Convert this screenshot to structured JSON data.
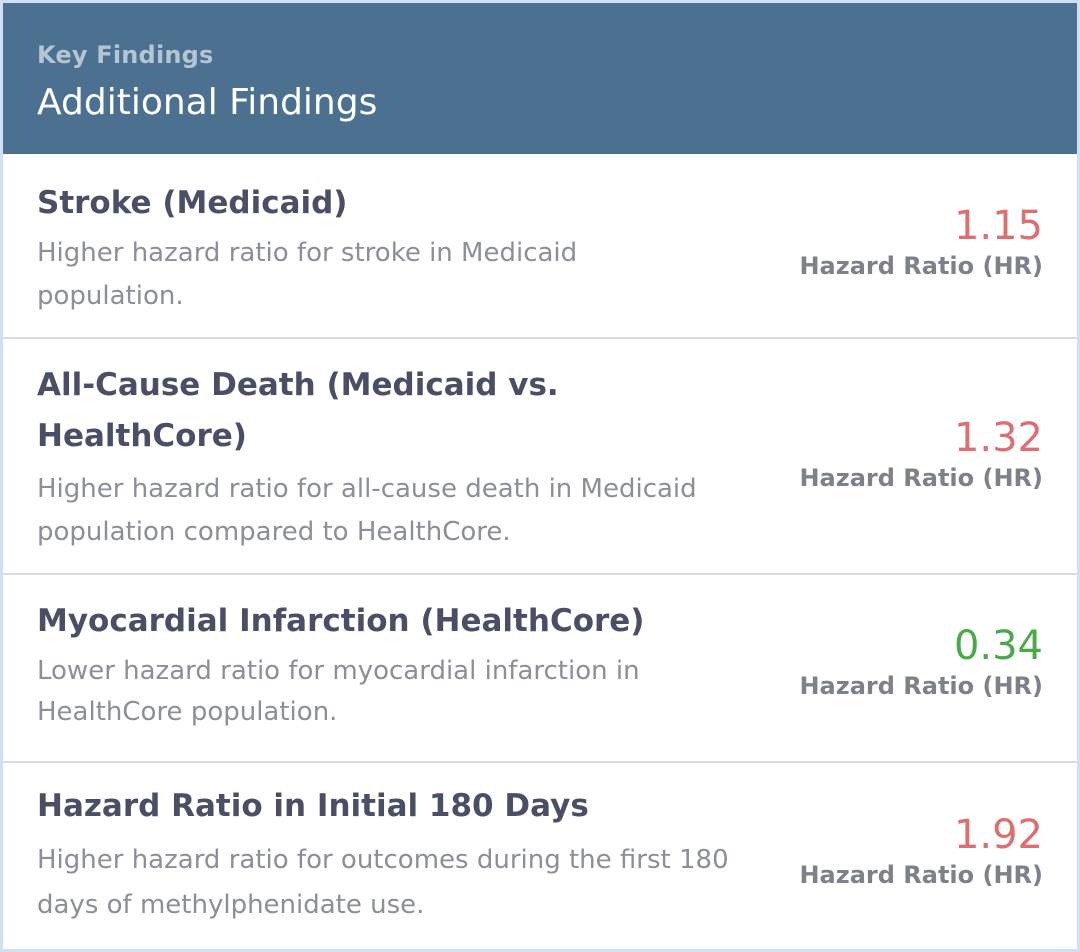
{
  "header": {
    "eyebrow": "Key Findings",
    "title": "Additional Findings"
  },
  "findings": [
    {
      "title": "Stroke (Medicaid)",
      "description": "Higher hazard ratio for stroke in Medicaid population.",
      "value": "1.15",
      "value_label": "Hazard Ratio (HR)",
      "direction": "increase"
    },
    {
      "title": "All-Cause Death (Medicaid vs. HealthCore)",
      "description": "Higher hazard ratio for all-cause death in Medicaid population compared to HealthCore.",
      "value": "1.32",
      "value_label": "Hazard Ratio (HR)",
      "direction": "increase"
    },
    {
      "title": "Myocardial Infarction (HealthCore)",
      "description": "Lower hazard ratio for myocardial infarction in HealthCore population.",
      "value": "0.34",
      "value_label": "Hazard Ratio (HR)",
      "direction": "decrease"
    },
    {
      "title": "Hazard Ratio in Initial 180 Days",
      "description": "Higher hazard ratio for outcomes during the first 180 days of methylphenidate use.",
      "value": "1.92",
      "value_label": "Hazard Ratio (HR)",
      "direction": "increase"
    }
  ],
  "colors": {
    "header_bg": "#4c7190",
    "increase": "#dc6f6f",
    "decrease": "#4aaa4a",
    "title_text": "#4a4f66"
  }
}
